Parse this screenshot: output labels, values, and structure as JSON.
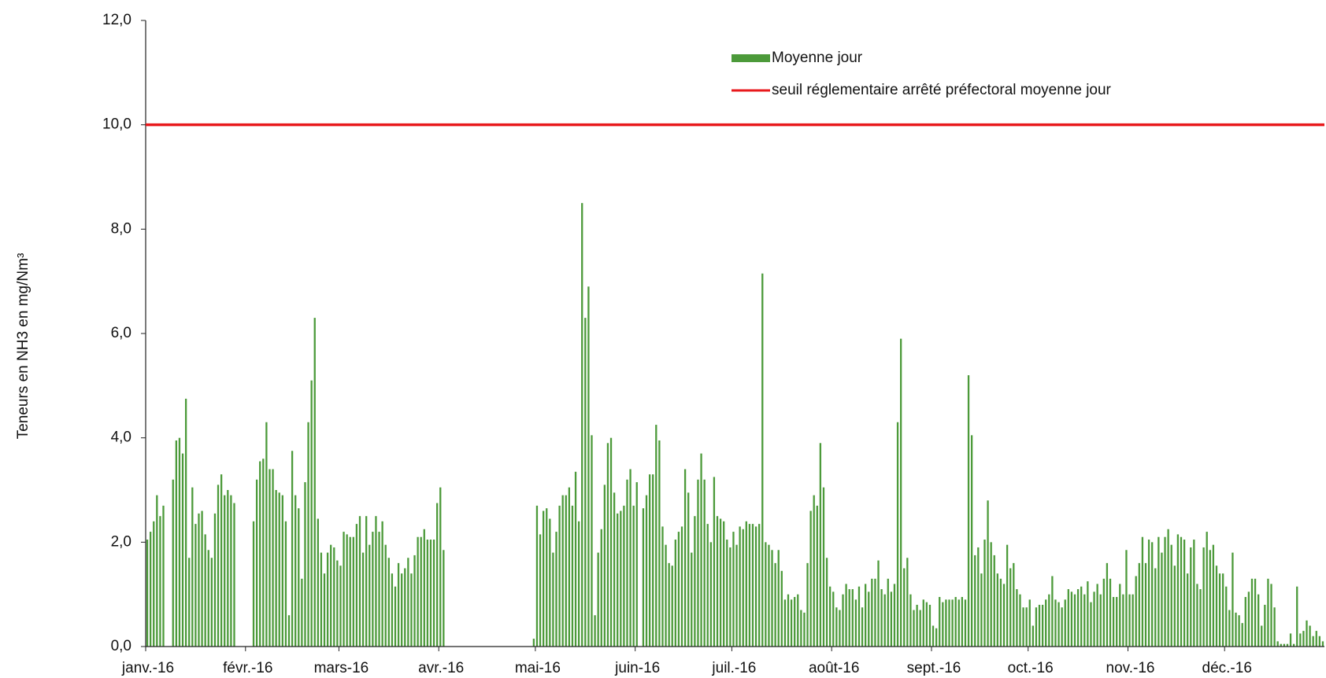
{
  "chart_data": {
    "type": "bar",
    "ylabel": "Teneurs en NH3 en mg/Nm³",
    "ylim": [
      0,
      12
    ],
    "yticks": [
      {
        "value": 0,
        "label": "0,0"
      },
      {
        "value": 2,
        "label": "2,0"
      },
      {
        "value": 4,
        "label": "4,0"
      },
      {
        "value": 6,
        "label": "6,0"
      },
      {
        "value": 8,
        "label": "8,0"
      },
      {
        "value": 10,
        "label": "10,0"
      },
      {
        "value": 12,
        "label": "12,0"
      }
    ],
    "legend": "top-center",
    "threshold": {
      "name": "seuil réglementaire arrêté préfectoral moyenne jour",
      "value": 10,
      "color": "#e8191c"
    },
    "categories": [
      "janv.-16",
      null,
      null,
      null,
      null,
      null,
      null,
      null,
      null,
      null,
      null,
      null,
      null,
      null,
      null,
      null,
      null,
      null,
      null,
      null,
      null,
      null,
      null,
      null,
      null,
      null,
      null,
      null,
      null,
      null,
      null,
      "févr.-16",
      null,
      null,
      null,
      null,
      null,
      null,
      null,
      null,
      null,
      null,
      null,
      null,
      null,
      null,
      null,
      null,
      null,
      null,
      null,
      null,
      null,
      null,
      null,
      null,
      null,
      null,
      null,
      null,
      "mars-16",
      null,
      null,
      null,
      null,
      null,
      null,
      null,
      null,
      null,
      null,
      null,
      null,
      null,
      null,
      null,
      null,
      null,
      null,
      null,
      null,
      null,
      null,
      null,
      null,
      null,
      null,
      null,
      null,
      null,
      null,
      "avr.-16",
      null,
      null,
      null,
      null,
      null,
      null,
      null,
      null,
      null,
      null,
      null,
      null,
      null,
      null,
      null,
      null,
      null,
      null,
      null,
      null,
      null,
      null,
      null,
      null,
      null,
      null,
      null,
      null,
      null,
      "mai-16",
      null,
      null,
      null,
      null,
      null,
      null,
      null,
      null,
      null,
      null,
      null,
      null,
      null,
      null,
      null,
      null,
      null,
      null,
      null,
      null,
      null,
      null,
      null,
      null,
      null,
      null,
      null,
      null,
      null,
      null,
      "juin-16",
      null,
      null,
      null,
      null,
      null,
      null,
      null,
      null,
      null,
      null,
      null,
      null,
      null,
      null,
      null,
      null,
      null,
      null,
      null,
      null,
      null,
      null,
      null,
      null,
      null,
      null,
      null,
      null,
      null,
      "juil.-16",
      null,
      null,
      null,
      null,
      null,
      null,
      null,
      null,
      null,
      null,
      null,
      null,
      null,
      null,
      null,
      null,
      null,
      null,
      null,
      null,
      null,
      null,
      null,
      null,
      null,
      null,
      null,
      null,
      null,
      null,
      "août-16",
      null,
      null,
      null,
      null,
      null,
      null,
      null,
      null,
      null,
      null,
      null,
      null,
      null,
      null,
      null,
      null,
      null,
      null,
      null,
      null,
      null,
      null,
      null,
      null,
      null,
      null,
      null,
      null,
      null,
      null,
      "sept.-16",
      null,
      null,
      null,
      null,
      null,
      null,
      null,
      null,
      null,
      null,
      null,
      null,
      null,
      null,
      null,
      null,
      null,
      null,
      null,
      null,
      null,
      null,
      null,
      null,
      null,
      null,
      null,
      null,
      null,
      "oct.-16",
      null,
      null,
      null,
      null,
      null,
      null,
      null,
      null,
      null,
      null,
      null,
      null,
      null,
      null,
      null,
      null,
      null,
      null,
      null,
      null,
      null,
      null,
      null,
      null,
      null,
      null,
      null,
      null,
      null,
      null,
      "nov.-16",
      null,
      null,
      null,
      null,
      null,
      null,
      null,
      null,
      null,
      null,
      null,
      null,
      null,
      null,
      null,
      null,
      null,
      null,
      null,
      null,
      null,
      null,
      null,
      null,
      null,
      null,
      null,
      null,
      null,
      "déc.-16",
      null,
      null,
      null,
      null,
      null,
      null,
      null,
      null,
      null,
      null,
      null,
      null,
      null,
      null,
      null,
      null,
      null,
      null,
      null,
      null,
      null,
      null,
      null,
      null,
      null,
      null,
      null,
      null,
      null,
      null
    ],
    "series": [
      {
        "name": "Moyenne jour",
        "color": "#4c9a3a",
        "values": [
          2.05,
          2.2,
          2.4,
          2.9,
          2.5,
          2.7,
          null,
          null,
          3.2,
          3.95,
          4.0,
          3.7,
          4.75,
          1.7,
          3.05,
          2.35,
          2.55,
          2.6,
          2.15,
          1.85,
          1.7,
          2.55,
          3.1,
          3.3,
          2.9,
          3.0,
          2.9,
          2.75,
          null,
          null,
          null,
          null,
          null,
          2.4,
          3.2,
          3.55,
          3.6,
          4.3,
          3.4,
          3.4,
          3.0,
          2.95,
          2.9,
          2.4,
          0.6,
          3.75,
          2.9,
          2.65,
          1.3,
          3.15,
          4.3,
          5.1,
          6.3,
          2.45,
          1.8,
          1.4,
          1.8,
          1.95,
          1.9,
          1.65,
          1.55,
          2.2,
          2.15,
          2.1,
          2.1,
          2.35,
          2.5,
          1.8,
          2.5,
          1.95,
          2.2,
          2.5,
          2.2,
          2.4,
          1.95,
          1.7,
          1.4,
          1.15,
          1.6,
          1.4,
          1.5,
          1.7,
          1.4,
          1.75,
          2.1,
          2.1,
          2.25,
          2.05,
          2.05,
          2.05,
          2.75,
          3.05,
          1.85,
          null,
          null,
          null,
          null,
          null,
          null,
          null,
          null,
          null,
          null,
          null,
          null,
          null,
          null,
          null,
          null,
          null,
          null,
          null,
          null,
          null,
          null,
          null,
          null,
          null,
          null,
          null,
          0.15,
          2.7,
          2.15,
          2.6,
          2.65,
          2.45,
          1.8,
          2.2,
          2.7,
          2.9,
          2.9,
          3.05,
          2.7,
          3.35,
          2.4,
          8.5,
          6.3,
          6.9,
          4.05,
          0.6,
          1.8,
          2.25,
          3.1,
          3.9,
          4.0,
          2.95,
          2.55,
          2.6,
          2.7,
          3.2,
          3.4,
          2.7,
          3.15,
          null,
          2.65,
          2.9,
          3.3,
          3.3,
          4.25,
          3.95,
          2.3,
          1.95,
          1.6,
          1.55,
          2.05,
          2.2,
          2.3,
          3.4,
          2.95,
          1.8,
          2.5,
          3.2,
          3.7,
          3.2,
          2.35,
          2.0,
          3.25,
          2.5,
          2.45,
          2.4,
          2.05,
          1.9,
          2.2,
          1.95,
          2.3,
          2.25,
          2.4,
          2.35,
          2.35,
          2.3,
          2.35,
          7.15,
          2.0,
          1.95,
          1.85,
          1.6,
          1.85,
          1.45,
          0.9,
          1.0,
          0.9,
          0.95,
          1.0,
          0.7,
          0.65,
          1.6,
          2.6,
          2.9,
          2.7,
          3.9,
          3.05,
          1.7,
          1.15,
          1.05,
          0.75,
          0.7,
          1.0,
          1.2,
          1.1,
          1.1,
          0.9,
          1.15,
          0.75,
          1.2,
          1.05,
          1.3,
          1.3,
          1.65,
          1.1,
          1.0,
          1.3,
          1.05,
          1.2,
          4.3,
          5.9,
          1.5,
          1.7,
          1.0,
          0.7,
          0.8,
          0.7,
          0.9,
          0.85,
          0.8,
          0.4,
          0.35,
          0.95,
          0.85,
          0.9,
          0.9,
          0.9,
          0.95,
          0.9,
          0.95,
          0.9,
          5.2,
          4.05,
          1.75,
          1.9,
          1.4,
          2.05,
          2.8,
          2.0,
          1.75,
          1.4,
          1.3,
          1.2,
          1.95,
          1.5,
          1.6,
          1.1,
          1.0,
          0.75,
          0.75,
          0.9,
          0.4,
          0.75,
          0.8,
          0.8,
          0.9,
          1.0,
          1.35,
          0.9,
          0.85,
          0.75,
          0.9,
          1.1,
          1.05,
          1.0,
          1.1,
          1.15,
          1.0,
          1.25,
          0.85,
          1.05,
          1.2,
          1.0,
          1.3,
          1.6,
          1.3,
          0.95,
          0.95,
          1.2,
          1.0,
          1.85,
          1.0,
          1.0,
          1.35,
          1.6,
          2.1,
          1.6,
          2.05,
          2.0,
          1.5,
          2.1,
          1.8,
          2.1,
          2.25,
          1.95,
          1.55,
          2.15,
          2.1,
          2.05,
          1.4,
          1.9,
          2.05,
          1.2,
          1.1,
          1.9,
          2.2,
          1.85,
          1.95,
          1.55,
          1.4,
          1.4,
          1.15,
          0.7,
          1.8,
          0.65,
          0.6,
          0.45,
          0.95,
          1.05,
          1.3,
          1.3,
          1.0,
          0.4,
          0.8,
          1.3,
          1.2,
          0.75,
          0.1,
          0.05,
          0.05,
          0.05,
          0.25,
          0.05,
          1.15,
          0.25,
          0.3,
          0.5,
          0.4,
          0.2,
          0.3,
          0.2,
          0.1
        ]
      }
    ]
  }
}
